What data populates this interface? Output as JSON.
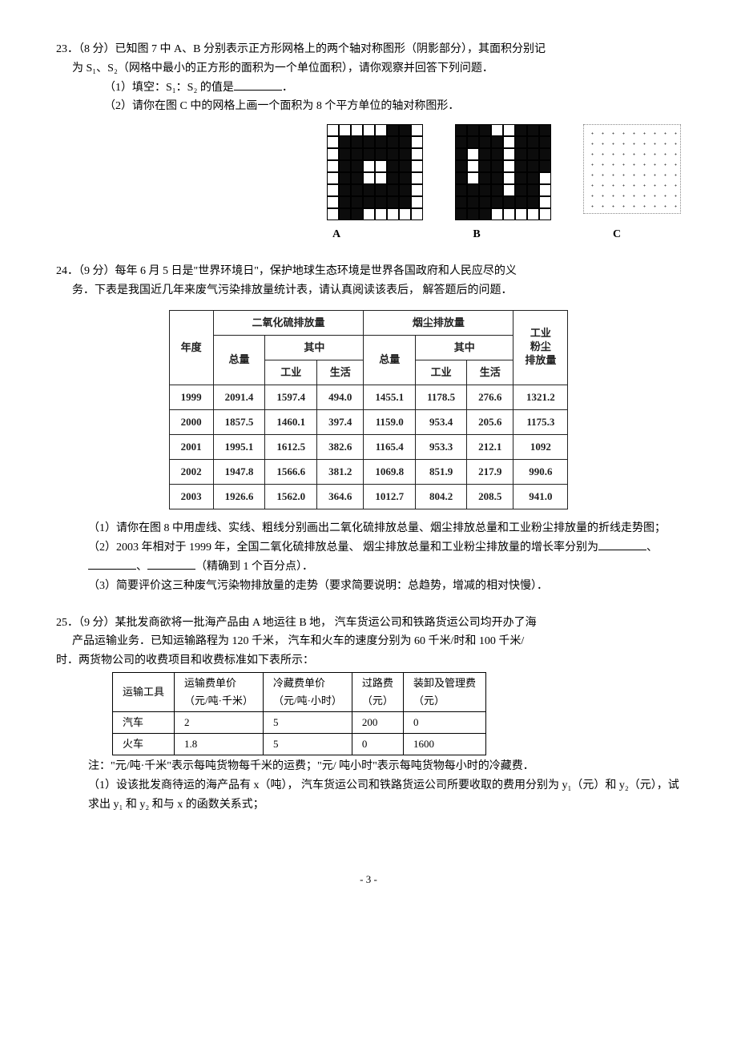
{
  "p23": {
    "heading": "23．（8 分）已知图 7 中 A、B 分别表示正方形网格上的两个轴对称图形（阴影部分），其面积分别记",
    "line2": "为 S₁、S₂（网格中最小的正方形的面积为一个单位面积），请你观察并回答下列问题．",
    "q1a": "（1）填空：S₁：S₂ 的值是",
    "q1b": "．",
    "q2": "（2）请你在图 C 中的网格上画一个面积为 8 个平方单位的轴对称图形．",
    "labelA": "A",
    "labelB": "B",
    "labelC": "C"
  },
  "p24": {
    "heading": "24．（9 分）每年 6 月 5 日是\"世界环境日\"，保护地球生态环境是世界各国政府和人民应尽的义",
    "line2": "务．下表是我国近几年来废气污染排放量统计表，请认真阅读该表后， 解答题后的问题．",
    "tbl": {
      "hdr_year": "年度",
      "hdr_so2": "二氧化硫排放量",
      "hdr_smoke": "烟尘排放量",
      "hdr_dust": "工业\n粉尘\n排放量",
      "hdr_total": "总量",
      "hdr_qizhong": "其中",
      "hdr_ind": "工业",
      "hdr_life": "生活",
      "rows": [
        {
          "year": "1999",
          "so2_total": "2091.4",
          "so2_ind": "1597.4",
          "so2_life": "494.0",
          "sm_total": "1455.1",
          "sm_ind": "1178.5",
          "sm_life": "276.6",
          "dust": "1321.2"
        },
        {
          "year": "2000",
          "so2_total": "1857.5",
          "so2_ind": "1460.1",
          "so2_life": "397.4",
          "sm_total": "1159.0",
          "sm_ind": "953.4",
          "sm_life": "205.6",
          "dust": "1175.3"
        },
        {
          "year": "2001",
          "so2_total": "1995.1",
          "so2_ind": "1612.5",
          "so2_life": "382.6",
          "sm_total": "1165.4",
          "sm_ind": "953.3",
          "sm_life": "212.1",
          "dust": "1092"
        },
        {
          "year": "2002",
          "so2_total": "1947.8",
          "so2_ind": "1566.6",
          "so2_life": "381.2",
          "sm_total": "1069.8",
          "sm_ind": "851.9",
          "sm_life": "217.9",
          "dust": "990.6"
        },
        {
          "year": "2003",
          "so2_total": "1926.6",
          "so2_ind": "1562.0",
          "so2_life": "364.6",
          "sm_total": "1012.7",
          "sm_ind": "804.2",
          "sm_life": "208.5",
          "dust": "941.0"
        }
      ]
    },
    "q1": "（1）请你在图 8 中用虚线、实线、粗线分别画出二氧化硫排放总量、烟尘排放总量和工业粉尘排放量的折线走势图；",
    "q2a": "（2）2003 年相对于 1999 年，全国二氧化硫排放总量、 烟尘排放总量和工业粉尘排放量的增长率分别为",
    "q2mid1": "、",
    "q2mid2": "、",
    "q2b": "（精确到 1 个百分点）．",
    "q3": "（3）简要评价这三种废气污染物排放量的走势（要求简要说明：总趋势，增减的相对快慢）．"
  },
  "p25": {
    "heading": "25．（9 分）某批发商欲将一批海产品由 A 地运往 B 地， 汽车货运公司和铁路货运公司均开办了海",
    "line2": "产品运输业务．已知运输路程为 120 千米， 汽车和火车的速度分别为 60 千米/时和 100 千米/",
    "line3": "时．两货物公司的收费项目和收费标准如下表所示：",
    "tbl": {
      "h_tool": "运输工具",
      "h_trans": "运输费单价\n（元/吨·千米）",
      "h_cold": "冷藏费单价\n（元/吨·小时）",
      "h_toll": "过路费\n（元）",
      "h_load": "装卸及管理费\n（元）",
      "rows": [
        {
          "tool": "汽车",
          "trans": "2",
          "cold": "5",
          "toll": "200",
          "load": "0"
        },
        {
          "tool": "火车",
          "trans": "1.8",
          "cold": "5",
          "toll": "0",
          "load": "1600"
        }
      ]
    },
    "note": "注：\"元/吨·千米\"表示每吨货物每千米的运费；\"元/ 吨小时\"表示每吨货物每小时的冷藏费．",
    "q1": "（1）设该批发商待运的海产品有 x（吨）， 汽车货运公司和铁路货运公司所要收取的费用分别为 y₁（元）和 y₂（元），试求出 y₁ 和 y₂ 和与 x 的函数关系式；"
  },
  "page": {
    "num": "- 3 -"
  },
  "figures": {
    "gridA": "0000011001111110011111100110011001100110011111100111111001100000",
    "gridB": "1110011111110111101101111011011110110110111101101111111011100000"
  },
  "style": {
    "colors": {
      "text": "#000000",
      "bg": "#ffffff",
      "cellBorder": "#222222"
    },
    "fonts": {
      "body": "SimSun",
      "figLabel": "Times New Roman"
    }
  }
}
